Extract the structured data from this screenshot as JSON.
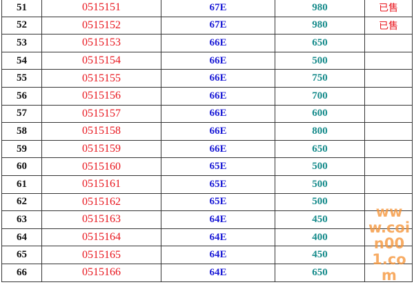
{
  "rows": [
    {
      "no": "51",
      "code": "0515151",
      "grade": "67E",
      "price": "980",
      "status": "已售"
    },
    {
      "no": "52",
      "code": "0515152",
      "grade": "67E",
      "price": "980",
      "status": "已售"
    },
    {
      "no": "53",
      "code": "0515153",
      "grade": "66E",
      "price": "650",
      "status": ""
    },
    {
      "no": "54",
      "code": "0515154",
      "grade": "66E",
      "price": "500",
      "status": ""
    },
    {
      "no": "55",
      "code": "0515155",
      "grade": "66E",
      "price": "750",
      "status": ""
    },
    {
      "no": "56",
      "code": "0515156",
      "grade": "66E",
      "price": "700",
      "status": ""
    },
    {
      "no": "57",
      "code": "0515157",
      "grade": "66E",
      "price": "600",
      "status": ""
    },
    {
      "no": "58",
      "code": "0515158",
      "grade": "66E",
      "price": "800",
      "status": ""
    },
    {
      "no": "59",
      "code": "0515159",
      "grade": "66E",
      "price": "650",
      "status": ""
    },
    {
      "no": "60",
      "code": "0515160",
      "grade": "65E",
      "price": "500",
      "status": ""
    },
    {
      "no": "61",
      "code": "0515161",
      "grade": "65E",
      "price": "500",
      "status": ""
    },
    {
      "no": "62",
      "code": "0515162",
      "grade": "65E",
      "price": "500",
      "status": ""
    },
    {
      "no": "63",
      "code": "0515163",
      "grade": "64E",
      "price": "450",
      "status": ""
    },
    {
      "no": "64",
      "code": "0515164",
      "grade": "64E",
      "price": "400",
      "status": ""
    },
    {
      "no": "65",
      "code": "0515165",
      "grade": "64E",
      "price": "450",
      "status": ""
    },
    {
      "no": "66",
      "code": "0515166",
      "grade": "64E",
      "price": "650",
      "status": ""
    }
  ],
  "watermark": "www.coin001.com",
  "colors": {
    "code": "#e8141c",
    "grade": "#1a1ad6",
    "price": "#148a8a",
    "status": "#e8141c",
    "watermark": "#f5963c"
  }
}
